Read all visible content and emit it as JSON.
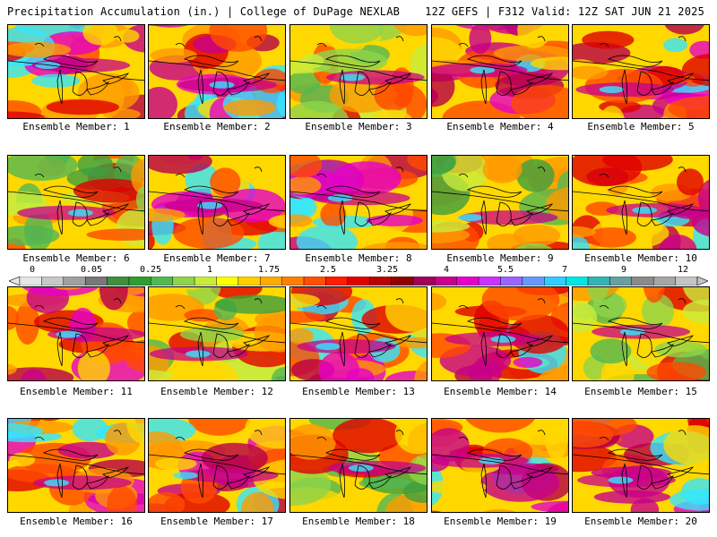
{
  "header": {
    "left_title": "Precipitation Accumulation (in.) | College of DuPage NEXLAB",
    "right_title": "12Z GEFS | F312 Valid: 12Z SAT JUN 21 2025"
  },
  "members": [
    {
      "caption": "Ensemble Member: 1"
    },
    {
      "caption": "Ensemble Member: 2"
    },
    {
      "caption": "Ensemble Member: 3"
    },
    {
      "caption": "Ensemble Member: 4"
    },
    {
      "caption": "Ensemble Member: 5"
    },
    {
      "caption": "Ensemble Member: 6"
    },
    {
      "caption": "Ensemble Member: 7"
    },
    {
      "caption": "Ensemble Member: 8"
    },
    {
      "caption": "Ensemble Member: 9"
    },
    {
      "caption": "Ensemble Member: 10"
    },
    {
      "caption": "Ensemble Member: 11"
    },
    {
      "caption": "Ensemble Member: 12"
    },
    {
      "caption": "Ensemble Member: 13"
    },
    {
      "caption": "Ensemble Member: 14"
    },
    {
      "caption": "Ensemble Member: 15"
    },
    {
      "caption": "Ensemble Member: 16"
    },
    {
      "caption": "Ensemble Member: 17"
    },
    {
      "caption": "Ensemble Member: 18"
    },
    {
      "caption": "Ensemble Member: 19"
    },
    {
      "caption": "Ensemble Member: 20"
    }
  ],
  "legend": {
    "labels": [
      "0",
      "0.05",
      "0.25",
      "1",
      "1.75",
      "2.5",
      "3.25",
      "4",
      "5.5",
      "7",
      "9",
      "12"
    ],
    "colors": [
      "#e6e6e6",
      "#c8c8c8",
      "#a0a0a0",
      "#787878",
      "#3f8f3f",
      "#2e9e2e",
      "#52b852",
      "#8fd44a",
      "#c8ec3c",
      "#ffff00",
      "#ffd000",
      "#ffaa00",
      "#ff8000",
      "#ff5000",
      "#ff1c00",
      "#e00000",
      "#b80000",
      "#900000",
      "#a0005a",
      "#c8008c",
      "#e600c8",
      "#cc33ff",
      "#9966ff",
      "#6699ff",
      "#33ccff",
      "#00e6e6",
      "#33b3b3",
      "#66a0a0",
      "#8a8a8a",
      "#a6a6a6",
      "#c4c4c4"
    ]
  }
}
